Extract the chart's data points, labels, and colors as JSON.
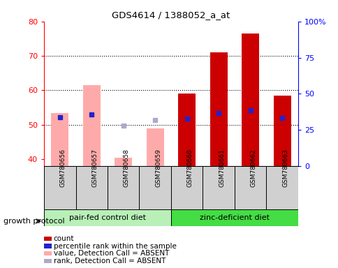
{
  "title": "GDS4614 / 1388052_a_at",
  "samples": [
    "GSM780656",
    "GSM780657",
    "GSM780658",
    "GSM780659",
    "GSM780660",
    "GSM780661",
    "GSM780662",
    "GSM780663"
  ],
  "count_values": [
    null,
    null,
    null,
    null,
    59,
    71,
    76.5,
    58.5
  ],
  "absent_value_values": [
    53.5,
    61.5,
    40.5,
    49,
    null,
    null,
    null,
    null
  ],
  "percentile_rank_left": [
    52.2,
    53.0,
    null,
    null,
    51.8,
    53.5,
    54.3,
    52.0
  ],
  "absent_rank_left": [
    null,
    null,
    49.8,
    51.3,
    null,
    null,
    null,
    null
  ],
  "ylim_left": [
    38,
    80
  ],
  "ylim_right": [
    0,
    100
  ],
  "yticks_left": [
    40,
    50,
    60,
    70,
    80
  ],
  "yticks_right": [
    0,
    25,
    50,
    75,
    100
  ],
  "groups": [
    {
      "label": "pair-fed control diet",
      "indices": [
        0,
        1,
        2,
        3
      ],
      "color": "#b8f0b8"
    },
    {
      "label": "zinc-deficient diet",
      "indices": [
        4,
        5,
        6,
        7
      ],
      "color": "#44dd44"
    }
  ],
  "group_protocol_label": "growth protocol",
  "bar_width": 0.55,
  "color_count": "#cc0000",
  "color_absent_value": "#ffaaaa",
  "color_percentile": "#2222cc",
  "color_absent_rank": "#aaaacc",
  "legend": [
    {
      "label": "count",
      "color": "#cc0000"
    },
    {
      "label": "percentile rank within the sample",
      "color": "#2222cc"
    },
    {
      "label": "value, Detection Call = ABSENT",
      "color": "#ffaaaa"
    },
    {
      "label": "rank, Detection Call = ABSENT",
      "color": "#aaaacc"
    }
  ],
  "fig_width": 4.85,
  "fig_height": 3.84,
  "dpi": 100
}
